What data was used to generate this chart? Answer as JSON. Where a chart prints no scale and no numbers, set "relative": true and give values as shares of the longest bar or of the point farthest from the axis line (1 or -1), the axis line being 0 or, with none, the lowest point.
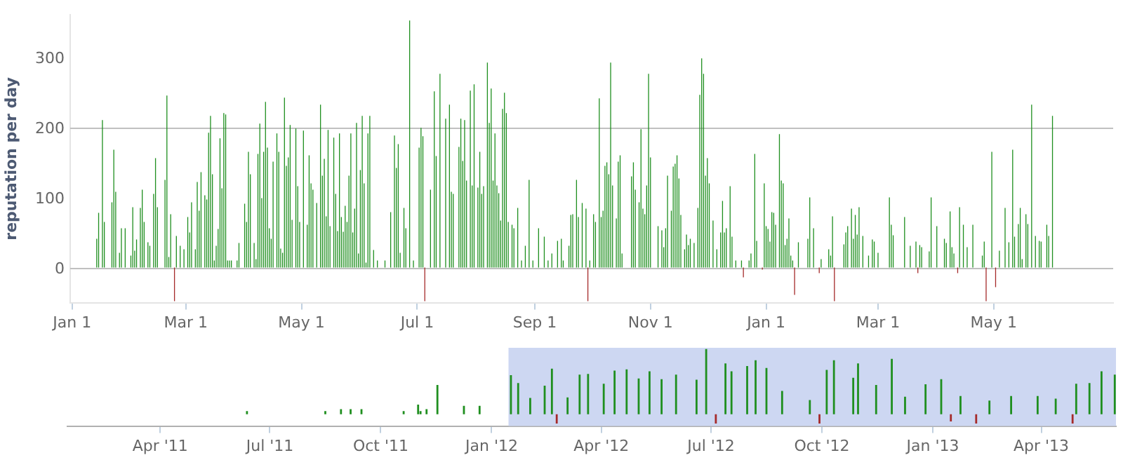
{
  "chart_data": [
    {
      "type": "bar",
      "ylabel": "reputation per day",
      "xlim": [
        "2011-12-31",
        "2013-07-03"
      ],
      "xticks": [
        {
          "value": "2012-01-01",
          "label": "Jan 1"
        },
        {
          "value": "2012-03-01",
          "label": "Mar 1"
        },
        {
          "value": "2012-05-01",
          "label": "May 1"
        },
        {
          "value": "2012-07-01",
          "label": "Jul 1"
        },
        {
          "value": "2012-09-01",
          "label": "Sep 1"
        },
        {
          "value": "2012-11-01",
          "label": "Nov 1"
        },
        {
          "value": "2013-01-01",
          "label": "Jan 1"
        },
        {
          "value": "2013-03-01",
          "label": "Mar 1"
        },
        {
          "value": "2013-05-01",
          "label": "May 1"
        }
      ],
      "ylim": [
        -50,
        360
      ],
      "yticks": [
        0,
        100,
        200,
        300
      ],
      "grid": false,
      "legend": false,
      "ref_lines": [
        {
          "axis": "y",
          "value": 200,
          "color": "#c0c0c0"
        },
        {
          "axis": "y",
          "value": 0,
          "color": "#c0c0c0"
        }
      ],
      "series": [
        {
          "color": "#1f8f1f",
          "x": [
            "2012-01-14",
            "2012-01-15",
            "2012-01-17",
            "2012-01-18",
            "2012-01-22",
            "2012-01-23",
            "2012-01-24",
            "2012-01-26",
            "2012-01-27",
            "2012-01-29",
            "2012-02-01",
            "2012-02-02",
            "2012-02-03",
            "2012-02-04",
            "2012-02-06",
            "2012-02-07",
            "2012-02-08",
            "2012-02-10",
            "2012-02-11",
            "2012-02-13",
            "2012-02-14",
            "2012-02-15",
            "2012-02-19",
            "2012-02-20",
            "2012-02-21",
            "2012-02-22",
            "2012-02-25",
            "2012-02-27",
            "2012-02-29",
            "2012-03-02",
            "2012-03-03",
            "2012-03-04",
            "2012-03-06",
            "2012-03-07",
            "2012-03-08",
            "2012-03-09",
            "2012-03-11",
            "2012-03-12",
            "2012-03-13",
            "2012-03-14",
            "2012-03-15",
            "2012-03-16",
            "2012-03-17",
            "2012-03-18",
            "2012-03-19",
            "2012-03-20",
            "2012-03-21",
            "2012-03-22",
            "2012-03-23",
            "2012-03-24",
            "2012-03-25",
            "2012-03-28",
            "2012-03-29",
            "2012-04-01",
            "2012-04-02",
            "2012-04-03",
            "2012-04-04",
            "2012-04-06",
            "2012-04-07",
            "2012-04-08",
            "2012-04-09",
            "2012-04-10",
            "2012-04-11",
            "2012-04-12",
            "2012-04-13",
            "2012-04-14",
            "2012-04-15",
            "2012-04-16",
            "2012-04-18",
            "2012-04-19",
            "2012-04-20",
            "2012-04-21",
            "2012-04-22",
            "2012-04-23",
            "2012-04-24",
            "2012-04-25",
            "2012-04-26",
            "2012-04-28",
            "2012-04-29",
            "2012-04-30",
            "2012-05-02",
            "2012-05-04",
            "2012-05-05",
            "2012-05-06",
            "2012-05-07",
            "2012-05-09",
            "2012-05-11",
            "2012-05-12",
            "2012-05-13",
            "2012-05-14",
            "2012-05-15",
            "2012-05-16",
            "2012-05-18",
            "2012-05-19",
            "2012-05-20",
            "2012-05-21",
            "2012-05-22",
            "2012-05-23",
            "2012-05-24",
            "2012-05-25",
            "2012-05-26",
            "2012-05-27",
            "2012-05-28",
            "2012-05-29",
            "2012-05-30",
            "2012-05-31",
            "2012-06-01",
            "2012-06-02",
            "2012-06-03",
            "2012-06-04",
            "2012-06-05",
            "2012-06-06",
            "2012-06-08",
            "2012-06-10",
            "2012-06-14",
            "2012-06-17",
            "2012-06-19",
            "2012-06-20",
            "2012-06-21",
            "2012-06-22",
            "2012-06-24",
            "2012-06-25",
            "2012-06-27",
            "2012-06-29",
            "2012-07-02",
            "2012-07-03",
            "2012-07-04",
            "2012-07-08",
            "2012-07-10",
            "2012-07-11",
            "2012-07-13",
            "2012-07-16",
            "2012-07-18",
            "2012-07-19",
            "2012-07-20",
            "2012-07-23",
            "2012-07-24",
            "2012-07-25",
            "2012-07-26",
            "2012-07-27",
            "2012-07-29",
            "2012-07-30",
            "2012-07-31",
            "2012-08-02",
            "2012-08-03",
            "2012-08-04",
            "2012-08-05",
            "2012-08-07",
            "2012-08-08",
            "2012-08-09",
            "2012-08-10",
            "2012-08-11",
            "2012-08-12",
            "2012-08-13",
            "2012-08-14",
            "2012-08-15",
            "2012-08-16",
            "2012-08-17",
            "2012-08-18",
            "2012-08-20",
            "2012-08-21",
            "2012-08-23",
            "2012-08-25",
            "2012-08-27",
            "2012-08-29",
            "2012-08-31",
            "2012-09-03",
            "2012-09-06",
            "2012-09-08",
            "2012-09-10",
            "2012-09-13",
            "2012-09-15",
            "2012-09-16",
            "2012-09-19",
            "2012-09-20",
            "2012-09-21",
            "2012-09-23",
            "2012-09-24",
            "2012-09-26",
            "2012-09-28",
            "2012-09-30",
            "2012-10-02",
            "2012-10-03",
            "2012-10-05",
            "2012-10-06",
            "2012-10-07",
            "2012-10-08",
            "2012-10-09",
            "2012-10-10",
            "2012-10-11",
            "2012-10-12",
            "2012-10-14",
            "2012-10-15",
            "2012-10-16",
            "2012-10-17",
            "2012-10-22",
            "2012-10-23",
            "2012-10-24",
            "2012-10-26",
            "2012-10-27",
            "2012-10-28",
            "2012-10-29",
            "2012-10-30",
            "2012-10-31",
            "2012-11-01",
            "2012-11-05",
            "2012-11-07",
            "2012-11-08",
            "2012-11-09",
            "2012-11-10",
            "2012-11-12",
            "2012-11-13",
            "2012-11-14",
            "2012-11-15",
            "2012-11-16",
            "2012-11-17",
            "2012-11-19",
            "2012-11-20",
            "2012-11-21",
            "2012-11-22",
            "2012-11-24",
            "2012-11-26",
            "2012-11-27",
            "2012-11-28",
            "2012-11-29",
            "2012-11-30",
            "2012-12-01",
            "2012-12-02",
            "2012-12-04",
            "2012-12-06",
            "2012-12-08",
            "2012-12-09",
            "2012-12-10",
            "2012-12-11",
            "2012-12-13",
            "2012-12-14",
            "2012-12-16",
            "2012-12-19",
            "2012-12-23",
            "2012-12-24",
            "2012-12-26",
            "2012-12-27",
            "2012-12-31",
            "2013-01-01",
            "2013-01-02",
            "2013-01-03",
            "2013-01-04",
            "2013-01-05",
            "2013-01-06",
            "2013-01-08",
            "2013-01-09",
            "2013-01-10",
            "2013-01-11",
            "2013-01-12",
            "2013-01-13",
            "2013-01-14",
            "2013-01-15",
            "2013-01-18",
            "2013-01-23",
            "2013-01-24",
            "2013-01-26",
            "2013-01-30",
            "2013-02-03",
            "2013-02-04",
            "2013-02-05",
            "2013-02-11",
            "2013-02-12",
            "2013-02-13",
            "2013-02-15",
            "2013-02-16",
            "2013-02-17",
            "2013-02-18",
            "2013-02-19",
            "2013-02-21",
            "2013-02-24",
            "2013-02-26",
            "2013-02-27",
            "2013-03-01",
            "2013-03-07",
            "2013-03-08",
            "2013-03-09",
            "2013-03-15",
            "2013-03-18",
            "2013-03-21",
            "2013-03-23",
            "2013-03-24",
            "2013-03-28",
            "2013-03-29",
            "2013-04-01",
            "2013-04-05",
            "2013-04-06",
            "2013-04-08",
            "2013-04-09",
            "2013-04-10",
            "2013-04-13",
            "2013-04-15",
            "2013-04-17",
            "2013-04-20",
            "2013-04-25",
            "2013-04-26",
            "2013-04-30",
            "2013-05-04",
            "2013-05-07",
            "2013-05-09",
            "2013-05-11",
            "2013-05-12",
            "2013-05-14",
            "2013-05-15",
            "2013-05-16",
            "2013-05-18",
            "2013-05-19",
            "2013-05-21",
            "2013-05-23",
            "2013-05-25",
            "2013-05-26",
            "2013-05-29",
            "2013-05-30",
            "2013-06-01"
          ],
          "values": [
            41,
            78,
            210,
            65,
            93,
            168,
            108,
            21,
            56,
            56,
            17,
            86,
            24,
            40,
            85,
            111,
            65,
            36,
            31,
            105,
            156,
            86,
            125,
            245,
            15,
            76,
            45,
            31,
            26,
            72,
            50,
            93,
            26,
            122,
            81,
            136,
            103,
            97,
            192,
            216,
            133,
            10,
            31,
            55,
            184,
            113,
            220,
            218,
            10,
            10,
            10,
            10,
            35,
            91,
            65,
            165,
            133,
            35,
            12,
            162,
            205,
            99,
            165,
            236,
            171,
            56,
            41,
            151,
            191,
            165,
            27,
            21,
            242,
            145,
            157,
            203,
            68,
            198,
            116,
            65,
            195,
            61,
            160,
            120,
            111,
            92,
            232,
            131,
            155,
            73,
            196,
            59,
            185,
            105,
            52,
            191,
            72,
            51,
            88,
            65,
            131,
            191,
            50,
            84,
            206,
            20,
            139,
            216,
            120,
            7,
            191,
            216,
            25,
            10,
            10,
            79,
            188,
            142,
            176,
            21,
            85,
            56,
            352,
            10,
            171,
            199,
            187,
            111,
            251,
            159,
            276,
            212,
            232,
            108,
            105,
            172,
            212,
            152,
            210,
            124,
            252,
            117,
            261,
            114,
            165,
            105,
            116,
            292,
            206,
            255,
            124,
            191,
            117,
            106,
            67,
            226,
            249,
            220,
            65,
            61,
            56,
            85,
            10,
            31,
            125,
            10,
            56,
            44,
            10,
            20,
            38,
            41,
            10,
            31,
            75,
            76,
            125,
            72,
            92,
            84,
            10,
            76,
            65,
            241,
            72,
            81,
            145,
            150,
            133,
            292,
            117,
            70,
            151,
            160,
            20,
            130,
            150,
            111,
            93,
            197,
            84,
            76,
            117,
            276,
            157,
            59,
            53,
            29,
            56,
            131,
            81,
            144,
            148,
            160,
            127,
            75,
            26,
            47,
            32,
            41,
            35,
            85,
            246,
            298,
            276,
            131,
            156,
            120,
            67,
            26,
            50,
            95,
            50,
            56,
            116,
            44,
            10,
            10,
            10,
            20,
            162,
            38,
            120,
            59,
            55,
            37,
            79,
            78,
            61,
            190,
            124,
            120,
            32,
            41,
            70,
            17,
            10,
            36,
            41,
            100,
            56,
            12,
            26,
            17,
            73,
            33,
            50,
            59,
            84,
            41,
            75,
            47,
            86,
            45,
            17,
            40,
            37,
            21,
            100,
            61,
            46,
            72,
            31,
            37,
            32,
            29,
            23,
            100,
            59,
            41,
            35,
            80,
            29,
            20,
            86,
            61,
            29,
            61,
            17,
            37,
            165,
            24,
            85,
            36,
            168,
            44,
            62,
            85,
            12,
            76,
            62,
            232,
            45,
            38,
            37,
            61,
            45,
            216
          ]
        },
        {
          "color": "#a52a2a",
          "x": [
            "2012-02-24",
            "2012-07-05",
            "2012-09-29",
            "2012-12-20",
            "2012-12-30",
            "2013-01-16",
            "2013-01-29",
            "2013-02-06",
            "2013-03-22",
            "2013-04-12",
            "2013-04-27",
            "2013-05-02"
          ],
          "values": [
            -48,
            -48,
            -48,
            -14,
            -3,
            -39,
            -8,
            -48,
            -8,
            -8,
            -48,
            -28
          ]
        }
      ]
    },
    {
      "type": "bar",
      "relative": true,
      "xlim": [
        "2011-01-14",
        "2013-06-02"
      ],
      "xticks": [
        {
          "value": "2011-04-01",
          "label": "Apr '11"
        },
        {
          "value": "2011-07-01",
          "label": "Jul '11"
        },
        {
          "value": "2011-10-01",
          "label": "Oct '11"
        },
        {
          "value": "2012-01-01",
          "label": "Jan '12"
        },
        {
          "value": "2012-04-01",
          "label": "Apr '12"
        },
        {
          "value": "2012-07-01",
          "label": "Jul '12"
        },
        {
          "value": "2012-10-01",
          "label": "Oct '12"
        },
        {
          "value": "2013-01-01",
          "label": "Jan '13"
        },
        {
          "value": "2013-04-01",
          "label": "Apr '13"
        }
      ],
      "tick_labels": "x",
      "grid": false,
      "legend": false,
      "bands": [
        {
          "axis": "x",
          "from": "2012-01-15",
          "to": "2013-06-02",
          "color": "#cdd7f2"
        }
      ],
      "series": [
        {
          "color": "#1f8f1f",
          "x": [
            "2011-06-12",
            "2011-08-16",
            "2011-08-29",
            "2011-09-06",
            "2011-09-15",
            "2011-10-20",
            "2011-11-01",
            "2011-11-03",
            "2011-11-08",
            "2011-11-17",
            "2011-12-09",
            "2011-12-22",
            "2012-01-17",
            "2012-01-23",
            "2012-02-02",
            "2012-02-14",
            "2012-02-20",
            "2012-03-04",
            "2012-03-14",
            "2012-03-21",
            "2012-04-03",
            "2012-04-12",
            "2012-04-22",
            "2012-05-02",
            "2012-05-11",
            "2012-05-21",
            "2012-06-02",
            "2012-06-19",
            "2012-06-27",
            "2012-07-13",
            "2012-07-18",
            "2012-07-31",
            "2012-08-07",
            "2012-08-16",
            "2012-08-29",
            "2012-09-21",
            "2012-10-05",
            "2012-10-11",
            "2012-10-27",
            "2012-10-31",
            "2012-11-15",
            "2012-11-28",
            "2012-12-09",
            "2012-12-26",
            "2013-01-08",
            "2013-01-24",
            "2013-02-17",
            "2013-03-07",
            "2013-03-29",
            "2013-04-13",
            "2013-04-30",
            "2013-05-11",
            "2013-05-21",
            "2013-06-01"
          ],
          "values": [
            0.05,
            0.05,
            0.08,
            0.08,
            0.08,
            0.05,
            0.15,
            0.05,
            0.08,
            0.45,
            0.13,
            0.13,
            0.6,
            0.48,
            0.25,
            0.44,
            0.7,
            0.26,
            0.61,
            0.62,
            0.47,
            0.67,
            0.69,
            0.55,
            0.66,
            0.54,
            0.61,
            0.53,
            1,
            0.78,
            0.66,
            0.74,
            0.83,
            0.71,
            0.36,
            0.22,
            0.68,
            0.83,
            0.56,
            0.78,
            0.45,
            0.85,
            0.27,
            0.46,
            0.54,
            0.28,
            0.21,
            0.28,
            0.28,
            0.24,
            0.47,
            0.48,
            0.66,
            0.61
          ]
        },
        {
          "color": "#a52a2a",
          "x": [
            "2012-02-24",
            "2012-07-05",
            "2012-09-29",
            "2013-01-16",
            "2013-02-06",
            "2013-04-27"
          ],
          "values": [
            -0.14,
            -0.14,
            -0.14,
            -0.11,
            -0.14,
            -0.14
          ]
        }
      ]
    }
  ]
}
